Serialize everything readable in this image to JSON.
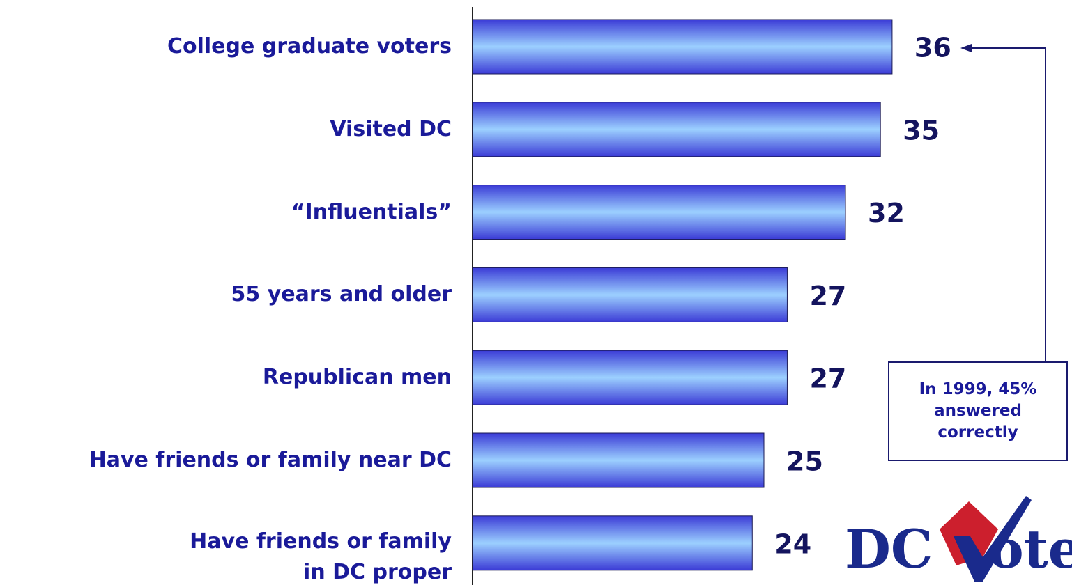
{
  "chart_data": {
    "type": "bar",
    "orientation": "horizontal",
    "categories": [
      "College graduate voters",
      "Visited DC",
      "“Influentials”",
      "55 years and older",
      "Republican men",
      "Have friends or family near DC",
      "Have friends or family\nin DC proper"
    ],
    "values": [
      36,
      35,
      32,
      27,
      27,
      25,
      24
    ],
    "color": "#3b3bd6",
    "highlight": "#9cd0ff",
    "xlim": [
      0,
      50
    ],
    "annotation": "In 1999, 45%\nanswered\ncorrectly",
    "logo_text": [
      "DC",
      "ote"
    ]
  }
}
